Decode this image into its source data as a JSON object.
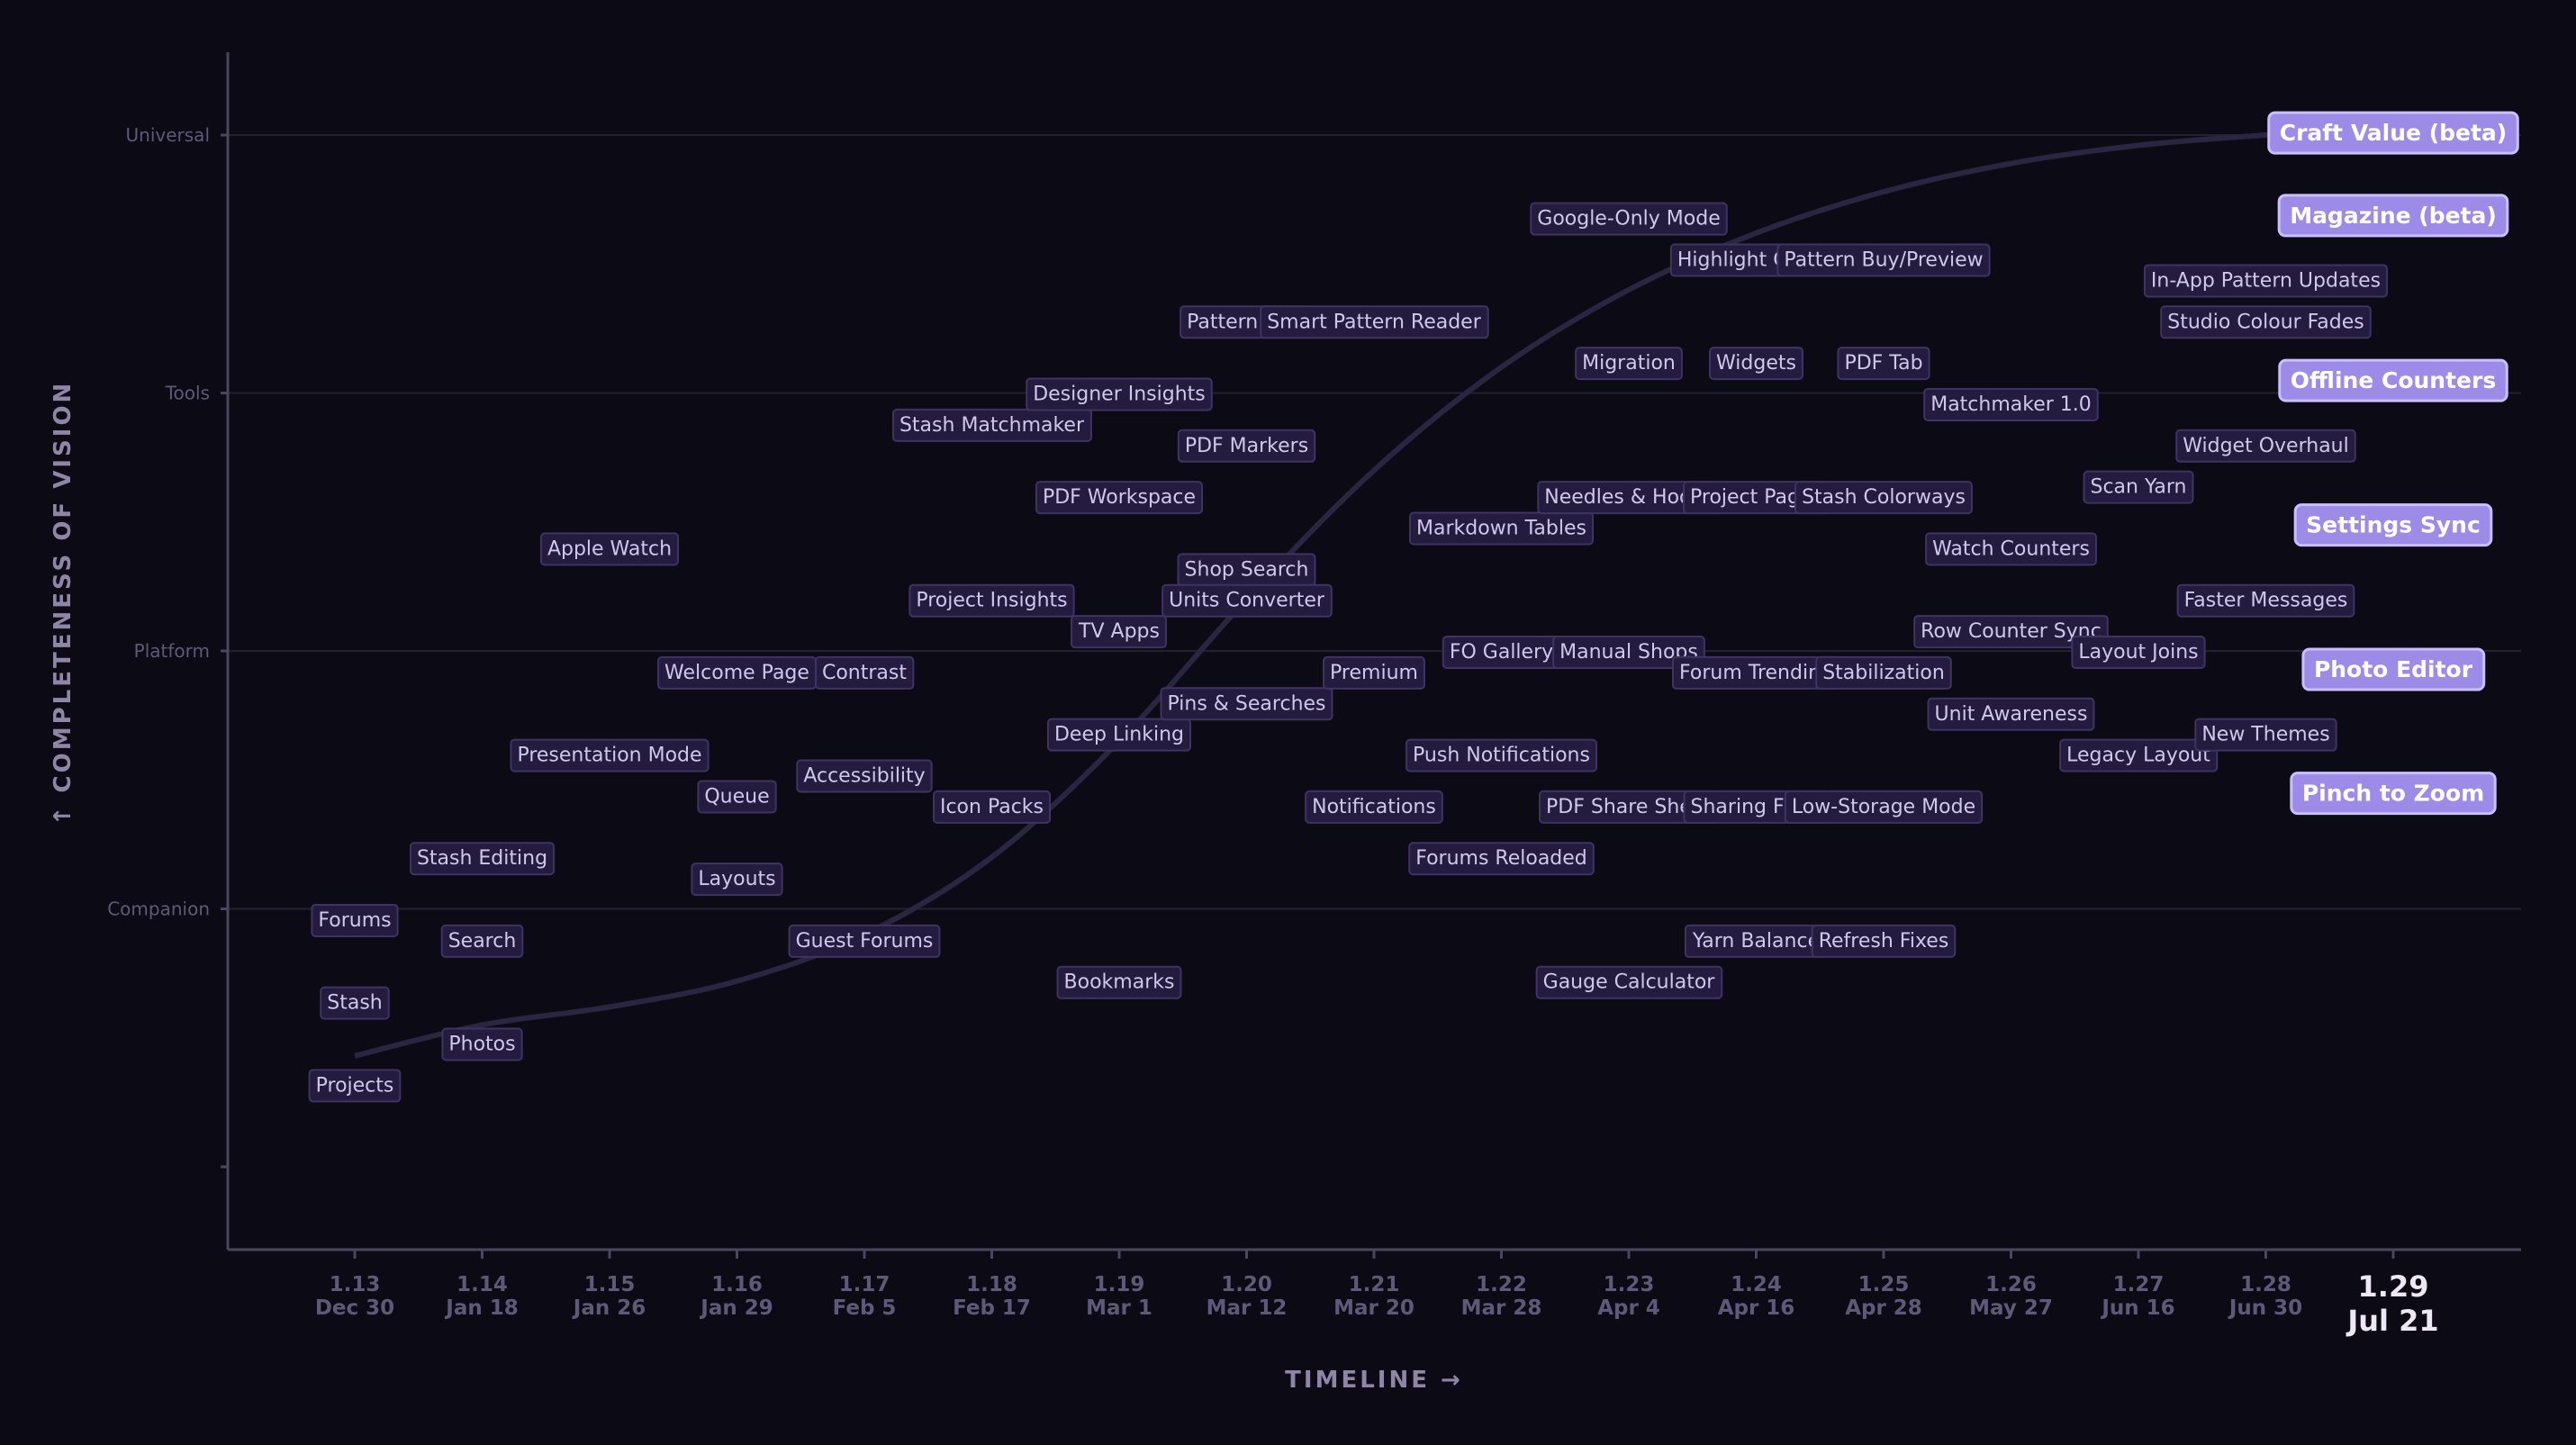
{
  "chart_data": {
    "type": "scatter",
    "title": "",
    "xlabel": "TIMELINE →",
    "ylabel": "↑ COMPLETENESS OF VISION",
    "ylim": [
      -0.4,
      4.6
    ],
    "grid": true,
    "x_ticks": [
      {
        "version": "1.13",
        "date": "Dec 30"
      },
      {
        "version": "1.14",
        "date": "Jan 18"
      },
      {
        "version": "1.15",
        "date": "Jan 26"
      },
      {
        "version": "1.16",
        "date": "Jan 29"
      },
      {
        "version": "1.17",
        "date": "Feb 5"
      },
      {
        "version": "1.18",
        "date": "Feb 17"
      },
      {
        "version": "1.19",
        "date": "Mar 1"
      },
      {
        "version": "1.20",
        "date": "Mar 12"
      },
      {
        "version": "1.21",
        "date": "Mar 20"
      },
      {
        "version": "1.22",
        "date": "Mar 28"
      },
      {
        "version": "1.23",
        "date": "Apr 4"
      },
      {
        "version": "1.24",
        "date": "Apr 16"
      },
      {
        "version": "1.25",
        "date": "Apr 28"
      },
      {
        "version": "1.26",
        "date": "May 27"
      },
      {
        "version": "1.27",
        "date": "Jun 16"
      },
      {
        "version": "1.28",
        "date": "Jun 30"
      },
      {
        "version": "1.29",
        "date": "Jul 21",
        "current": true
      }
    ],
    "y_ticks": [
      {
        "value": 0,
        "label": ""
      },
      {
        "value": 1,
        "label": "Companion"
      },
      {
        "value": 2,
        "label": "Platform"
      },
      {
        "value": 3,
        "label": "Tools"
      },
      {
        "value": 4,
        "label": "Universal"
      }
    ],
    "trend_curve": [
      [
        0,
        0.43
      ],
      [
        1,
        0.55
      ],
      [
        2,
        0.62
      ],
      [
        3,
        0.72
      ],
      [
        4,
        0.9
      ],
      [
        5,
        1.2
      ],
      [
        6,
        1.65
      ],
      [
        7,
        2.2
      ],
      [
        8,
        2.7
      ],
      [
        9,
        3.1
      ],
      [
        10,
        3.4
      ],
      [
        11,
        3.62
      ],
      [
        12,
        3.78
      ],
      [
        13,
        3.89
      ],
      [
        14,
        3.96
      ],
      [
        15,
        4.0
      ],
      [
        16,
        4.03
      ]
    ],
    "series": [
      {
        "label": "Forums",
        "x": 0,
        "y": 0.96
      },
      {
        "label": "Stash",
        "x": 0,
        "y": 0.64
      },
      {
        "label": "Projects",
        "x": 0,
        "y": 0.32
      },
      {
        "label": "Stash Editing",
        "x": 1,
        "y": 1.2
      },
      {
        "label": "Search",
        "x": 1,
        "y": 0.88
      },
      {
        "label": "Photos",
        "x": 1,
        "y": 0.48
      },
      {
        "label": "Apple Watch",
        "x": 2,
        "y": 2.4
      },
      {
        "label": "Presentation Mode",
        "x": 2,
        "y": 1.6
      },
      {
        "label": "Welcome Page",
        "x": 3,
        "y": 1.92
      },
      {
        "label": "Queue",
        "x": 3,
        "y": 1.44
      },
      {
        "label": "Layouts",
        "x": 3,
        "y": 1.12
      },
      {
        "label": "Contrast",
        "x": 4,
        "y": 1.92
      },
      {
        "label": "Accessibility",
        "x": 4,
        "y": 1.52
      },
      {
        "label": "Guest Forums",
        "x": 4,
        "y": 0.88
      },
      {
        "label": "Stash Matchmaker",
        "x": 5,
        "y": 2.88
      },
      {
        "label": "Project Insights",
        "x": 5,
        "y": 2.2
      },
      {
        "label": "Icon Packs",
        "x": 5,
        "y": 1.4
      },
      {
        "label": "Designer Insights",
        "x": 6,
        "y": 3.0
      },
      {
        "label": "PDF Workspace",
        "x": 6,
        "y": 2.6
      },
      {
        "label": "TV Apps",
        "x": 6,
        "y": 2.08
      },
      {
        "label": "Deep Linking",
        "x": 6,
        "y": 1.68
      },
      {
        "label": "Bookmarks",
        "x": 6,
        "y": 0.72
      },
      {
        "label": "Pattern Tran",
        "x": 7,
        "y": 3.28
      },
      {
        "label": "PDF Markers",
        "x": 7,
        "y": 2.8
      },
      {
        "label": "Shop Search",
        "x": 7,
        "y": 2.32
      },
      {
        "label": "Units Converter",
        "x": 7,
        "y": 2.2
      },
      {
        "label": "Pins & Searches",
        "x": 7,
        "y": 1.8
      },
      {
        "label": "Smart Pattern Reader",
        "x": 8,
        "y": 3.28
      },
      {
        "label": "Premium",
        "x": 8,
        "y": 1.92
      },
      {
        "label": "Notifications",
        "x": 8,
        "y": 1.4
      },
      {
        "label": "Markdown Tables",
        "x": 9,
        "y": 2.48
      },
      {
        "label": "FO Gallery",
        "x": 9,
        "y": 2.0
      },
      {
        "label": "Push Notifications",
        "x": 9,
        "y": 1.6
      },
      {
        "label": "Forums Reloaded",
        "x": 9,
        "y": 1.2
      },
      {
        "label": "Google-Only Mode",
        "x": 10,
        "y": 3.68
      },
      {
        "label": "Migration",
        "x": 10,
        "y": 3.12
      },
      {
        "label": "Needles & Hooks",
        "x": 10,
        "y": 2.6
      },
      {
        "label": "Manual Shops",
        "x": 10,
        "y": 2.0
      },
      {
        "label": "PDF Share Sheet",
        "x": 10,
        "y": 1.4
      },
      {
        "label": "Gauge Calculator",
        "x": 10,
        "y": 0.72
      },
      {
        "label": "Highlight Colors",
        "x": 11,
        "y": 3.52
      },
      {
        "label": "Widgets",
        "x": 11,
        "y": 3.12
      },
      {
        "label": "Project Pages",
        "x": 11,
        "y": 2.6
      },
      {
        "label": "Forum Trending",
        "x": 11,
        "y": 1.92
      },
      {
        "label": "Sharing Fixes",
        "x": 11,
        "y": 1.4
      },
      {
        "label": "Yarn Balance",
        "x": 11,
        "y": 0.88
      },
      {
        "label": "Pattern Buy/Preview",
        "x": 12,
        "y": 3.52
      },
      {
        "label": "PDF Tab",
        "x": 12,
        "y": 3.12
      },
      {
        "label": "Stash Colorways",
        "x": 12,
        "y": 2.6
      },
      {
        "label": "Stabilization",
        "x": 12,
        "y": 1.92
      },
      {
        "label": "Low-Storage Mode",
        "x": 12,
        "y": 1.4
      },
      {
        "label": "Refresh Fixes",
        "x": 12,
        "y": 0.88
      },
      {
        "label": "Matchmaker 1.0",
        "x": 13,
        "y": 2.96
      },
      {
        "label": "Watch Counters",
        "x": 13,
        "y": 2.4
      },
      {
        "label": "Row Counter Sync",
        "x": 13,
        "y": 2.08
      },
      {
        "label": "Unit Awareness",
        "x": 13,
        "y": 1.76
      },
      {
        "label": "Scan Yarn",
        "x": 14,
        "y": 2.64
      },
      {
        "label": "Layout Joins",
        "x": 14,
        "y": 2.0
      },
      {
        "label": "Legacy Layout",
        "x": 14,
        "y": 1.6
      },
      {
        "label": "In-App Pattern Updates",
        "x": 15,
        "y": 3.44
      },
      {
        "label": "Studio Colour Fades",
        "x": 15,
        "y": 3.28
      },
      {
        "label": "Widget Overhaul",
        "x": 15,
        "y": 2.8
      },
      {
        "label": "Faster Messages",
        "x": 15,
        "y": 2.2
      },
      {
        "label": "New Themes",
        "x": 15,
        "y": 1.68
      },
      {
        "label": "Craft Value (beta)",
        "x": 16,
        "y": 4.01,
        "highlight": true
      },
      {
        "label": "Magazine (beta)",
        "x": 16,
        "y": 3.69,
        "highlight": true
      },
      {
        "label": "Offline Counters",
        "x": 16,
        "y": 3.05,
        "highlight": true
      },
      {
        "label": "Settings Sync",
        "x": 16,
        "y": 2.49,
        "highlight": true
      },
      {
        "label": "Photo Editor",
        "x": 16,
        "y": 1.93,
        "highlight": true
      },
      {
        "label": "Pinch to Zoom",
        "x": 16,
        "y": 1.45,
        "highlight": true
      }
    ]
  }
}
